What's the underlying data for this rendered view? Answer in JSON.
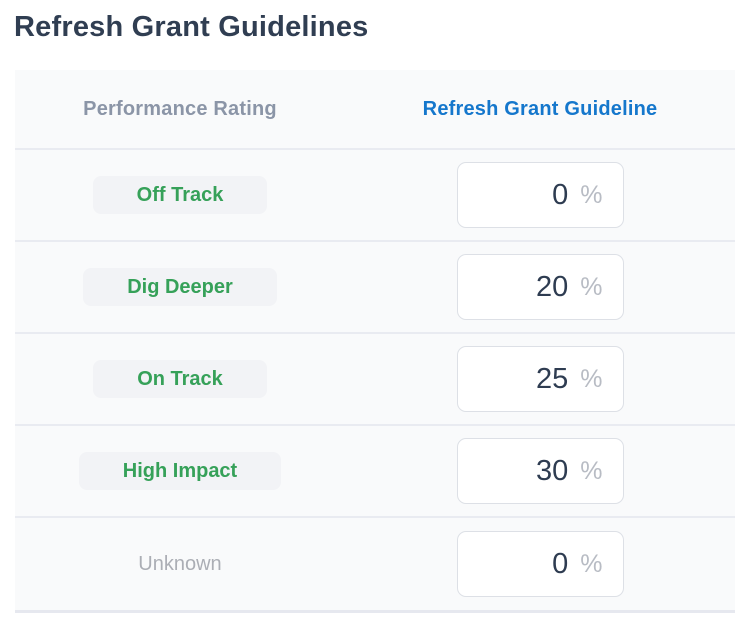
{
  "page": {
    "title": "Refresh Grant Guidelines"
  },
  "table": {
    "columns": [
      {
        "key": "rating",
        "label": "Performance Rating"
      },
      {
        "key": "guideline",
        "label": "Refresh Grant Guideline"
      }
    ],
    "rows": [
      {
        "rating": "Off Track",
        "value": "0",
        "unit": "%",
        "rating_style": "badge-green"
      },
      {
        "rating": "Dig Deeper",
        "value": "20",
        "unit": "%",
        "rating_style": "badge-green"
      },
      {
        "rating": "On Track",
        "value": "25",
        "unit": "%",
        "rating_style": "badge-green"
      },
      {
        "rating": "High Impact",
        "value": "30",
        "unit": "%",
        "rating_style": "badge-green"
      },
      {
        "rating": "Unknown",
        "value": "0",
        "unit": "%",
        "rating_style": "plain-gray"
      }
    ]
  },
  "colors": {
    "title": "#303e52",
    "header_rating": "#8b95a7",
    "header_guideline": "#1577cc",
    "badge_text": "#36a159",
    "badge_bg": "#f2f3f6",
    "unknown_text": "#abaeb5",
    "table_bg": "#f9fafb",
    "row_border": "#e9ebf1",
    "table_bottom_border": "#e6e8ef",
    "input_border": "#dde0e6",
    "input_value": "#2e3c51",
    "input_unit": "#b8bcc4"
  }
}
